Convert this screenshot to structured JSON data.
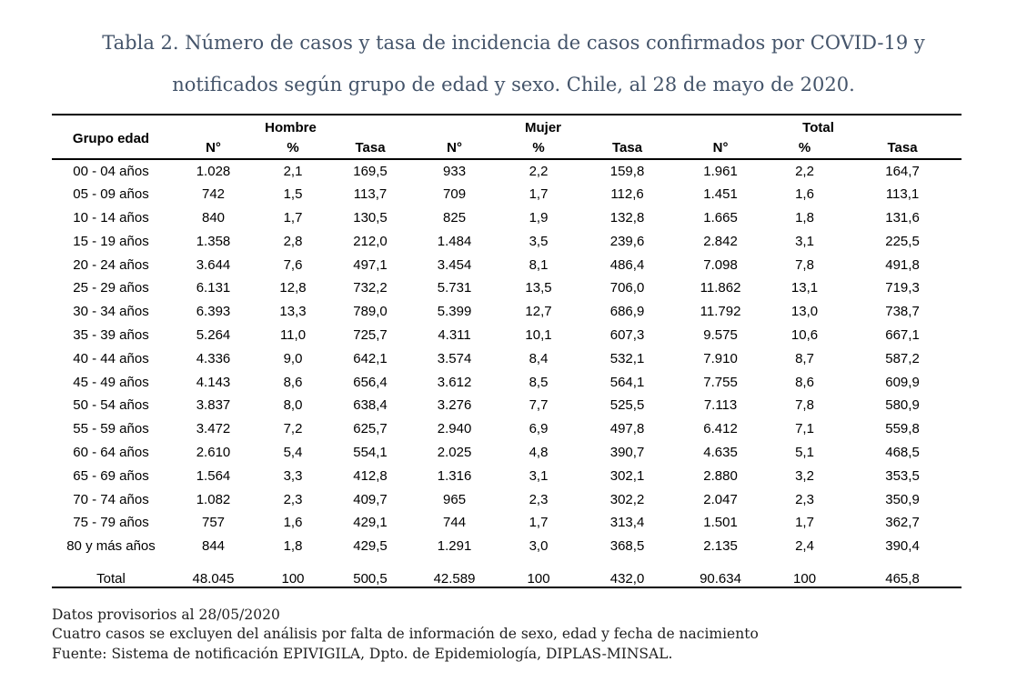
{
  "title": {
    "line1": "Tabla 2. Número de casos y tasa de incidencia de casos confirmados por COVID-19 y",
    "line2": "notificados según grupo de edad y sexo. Chile, al 28 de mayo de 2020."
  },
  "table": {
    "row_header_label": "Grupo edad",
    "groups": [
      "Hombre",
      "Mujer",
      "Total"
    ],
    "subheaders": [
      "N°",
      "%",
      "Tasa"
    ],
    "rows": [
      {
        "label": "00 - 04 años",
        "values": [
          "1.028",
          "2,1",
          "169,5",
          "933",
          "2,2",
          "159,8",
          "1.961",
          "2,2",
          "164,7"
        ]
      },
      {
        "label": "05 - 09 años",
        "values": [
          "742",
          "1,5",
          "113,7",
          "709",
          "1,7",
          "112,6",
          "1.451",
          "1,6",
          "113,1"
        ]
      },
      {
        "label": "10 - 14 años",
        "values": [
          "840",
          "1,7",
          "130,5",
          "825",
          "1,9",
          "132,8",
          "1.665",
          "1,8",
          "131,6"
        ]
      },
      {
        "label": "15 - 19 años",
        "values": [
          "1.358",
          "2,8",
          "212,0",
          "1.484",
          "3,5",
          "239,6",
          "2.842",
          "3,1",
          "225,5"
        ]
      },
      {
        "label": "20 - 24 años",
        "values": [
          "3.644",
          "7,6",
          "497,1",
          "3.454",
          "8,1",
          "486,4",
          "7.098",
          "7,8",
          "491,8"
        ]
      },
      {
        "label": "25 - 29 años",
        "values": [
          "6.131",
          "12,8",
          "732,2",
          "5.731",
          "13,5",
          "706,0",
          "11.862",
          "13,1",
          "719,3"
        ]
      },
      {
        "label": "30 - 34 años",
        "values": [
          "6.393",
          "13,3",
          "789,0",
          "5.399",
          "12,7",
          "686,9",
          "11.792",
          "13,0",
          "738,7"
        ]
      },
      {
        "label": "35 - 39 años",
        "values": [
          "5.264",
          "11,0",
          "725,7",
          "4.311",
          "10,1",
          "607,3",
          "9.575",
          "10,6",
          "667,1"
        ]
      },
      {
        "label": "40 - 44 años",
        "values": [
          "4.336",
          "9,0",
          "642,1",
          "3.574",
          "8,4",
          "532,1",
          "7.910",
          "8,7",
          "587,2"
        ]
      },
      {
        "label": "45 - 49 años",
        "values": [
          "4.143",
          "8,6",
          "656,4",
          "3.612",
          "8,5",
          "564,1",
          "7.755",
          "8,6",
          "609,9"
        ]
      },
      {
        "label": "50 - 54 años",
        "values": [
          "3.837",
          "8,0",
          "638,4",
          "3.276",
          "7,7",
          "525,5",
          "7.113",
          "7,8",
          "580,9"
        ]
      },
      {
        "label": "55 - 59 años",
        "values": [
          "3.472",
          "7,2",
          "625,7",
          "2.940",
          "6,9",
          "497,8",
          "6.412",
          "7,1",
          "559,8"
        ]
      },
      {
        "label": "60 - 64 años",
        "values": [
          "2.610",
          "5,4",
          "554,1",
          "2.025",
          "4,8",
          "390,7",
          "4.635",
          "5,1",
          "468,5"
        ]
      },
      {
        "label": "65 - 69 años",
        "values": [
          "1.564",
          "3,3",
          "412,8",
          "1.316",
          "3,1",
          "302,1",
          "2.880",
          "3,2",
          "353,5"
        ]
      },
      {
        "label": "70 - 74 años",
        "values": [
          "1.082",
          "2,3",
          "409,7",
          "965",
          "2,3",
          "302,2",
          "2.047",
          "2,3",
          "350,9"
        ]
      },
      {
        "label": "75 - 79 años",
        "values": [
          "757",
          "1,6",
          "429,1",
          "744",
          "1,7",
          "313,4",
          "1.501",
          "1,7",
          "362,7"
        ]
      },
      {
        "label": "80 y más años",
        "values": [
          "844",
          "1,8",
          "429,5",
          "1.291",
          "3,0",
          "368,5",
          "2.135",
          "2,4",
          "390,4"
        ]
      }
    ],
    "total_row": {
      "label": "Total",
      "values": [
        "48.045",
        "100",
        "500,5",
        "42.589",
        "100",
        "432,0",
        "90.634",
        "100",
        "465,8"
      ]
    }
  },
  "footnotes": [
    "Datos provisorios al 28/05/2020",
    "Cuatro casos se excluyen del análisis por falta de información de sexo, edad y fecha de nacimiento",
    "Fuente: Sistema de notificación EPIVIGILA, Dpto. de Epidemiología, DIPLAS-MINSAL."
  ],
  "colors": {
    "title_text": "#44546a",
    "body_text": "#000000",
    "note_text": "#1f1f1f",
    "rule": "#000000"
  }
}
